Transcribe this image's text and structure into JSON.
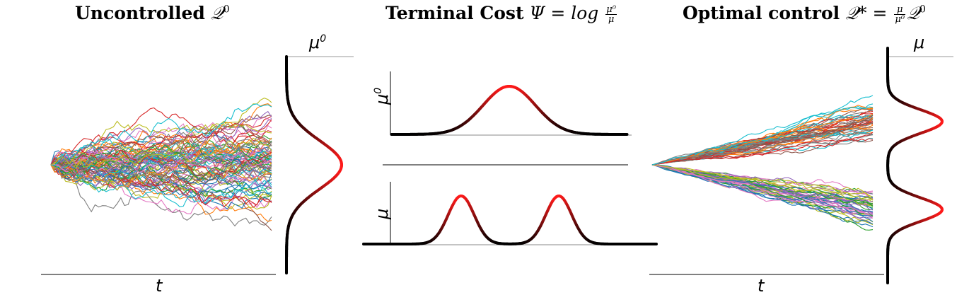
{
  "panels": {
    "left": {
      "title_bold": "Uncontrolled",
      "title_math": "𝒬",
      "title_sup": "0",
      "xlabel": "t",
      "density_label": "μ",
      "density_label_sup": "0"
    },
    "middle": {
      "title_bold": "Terminal Cost",
      "title_math_lhs": "Ψ = log",
      "frac_num": "μ⁰",
      "frac_den": "μ",
      "top_ylabel": "μ",
      "top_ylabel_sup": "0",
      "bottom_ylabel": "μ"
    },
    "right": {
      "title_bold": "Optimal control",
      "title_math_lhs": "𝒬* =",
      "frac_num": "μ",
      "frac_den": "μ⁰",
      "title_math_rhs": "𝒬",
      "title_sup": "0",
      "xlabel": "t",
      "density_label": "μ"
    }
  },
  "colors": {
    "path_palette": [
      "#1f77b4",
      "#ff7f0e",
      "#2ca02c",
      "#d62728",
      "#9467bd",
      "#8c564b",
      "#e377c2",
      "#7f7f7f",
      "#bcbd22",
      "#17becf"
    ],
    "density_low": "#000000",
    "density_high": "#ff1a1a"
  },
  "chart_data": [
    {
      "type": "line",
      "panel": "uncontrolled-paths",
      "n_paths": 90,
      "xlabel": "t",
      "terminal_distribution": "single gaussian",
      "mean": 0,
      "std": 1
    },
    {
      "type": "line",
      "panel": "mu0-density",
      "xlabel": "",
      "ylabel": "μ⁰",
      "distribution": "single gaussian",
      "mean": 0,
      "std": 1
    },
    {
      "type": "line",
      "panel": "mu-density",
      "xlabel": "",
      "ylabel": "μ",
      "distribution": "bimodal gaussian",
      "means": [
        -1.5,
        1.5
      ],
      "std": 0.4
    },
    {
      "type": "line",
      "panel": "optimal-paths",
      "n_paths": 90,
      "xlabel": "t",
      "terminal_distribution": "bimodal gaussian",
      "means": [
        -1.5,
        1.5
      ],
      "std": 0.4
    }
  ]
}
